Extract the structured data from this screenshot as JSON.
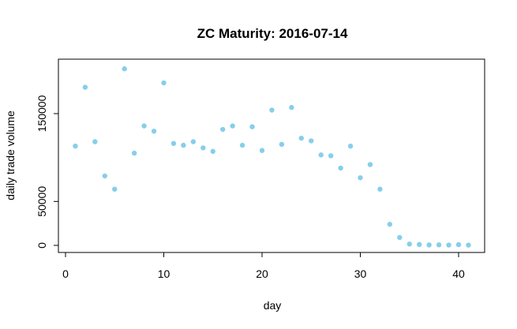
{
  "chart_data": {
    "type": "scatter",
    "title": "ZC Maturity: 2016-07-14",
    "xlabel": "day",
    "ylabel": "daily trade volume",
    "xlim": [
      0,
      42.2
    ],
    "ylim": [
      -2000,
      210000
    ],
    "x_ticks": [
      0,
      10,
      20,
      30,
      40
    ],
    "x_tick_labels": [
      "0",
      "10",
      "20",
      "30",
      "40"
    ],
    "y_ticks": [
      0,
      50000,
      150000
    ],
    "y_tick_labels": [
      "0",
      "50000",
      "150000"
    ],
    "grid": false,
    "legend": "none",
    "point_color": "#87CEEB",
    "x": [
      1,
      2,
      3,
      4,
      5,
      6,
      7,
      8,
      9,
      10,
      11,
      12,
      13,
      14,
      15,
      16,
      17,
      18,
      19,
      20,
      21,
      22,
      23,
      24,
      25,
      26,
      27,
      28,
      29,
      30,
      31,
      32,
      33,
      34,
      35,
      36,
      37,
      38,
      39,
      40,
      41
    ],
    "y": [
      113000,
      180000,
      118000,
      79000,
      64000,
      201000,
      105000,
      136000,
      130000,
      185000,
      116000,
      114000,
      118000,
      111000,
      107000,
      132000,
      136000,
      114000,
      135000,
      108000,
      154000,
      115000,
      157000,
      122000,
      119000,
      103000,
      102000,
      88000,
      113000,
      77000,
      92000,
      64000,
      24000,
      9000,
      1500,
      1000,
      500,
      600,
      400,
      800,
      300
    ]
  }
}
